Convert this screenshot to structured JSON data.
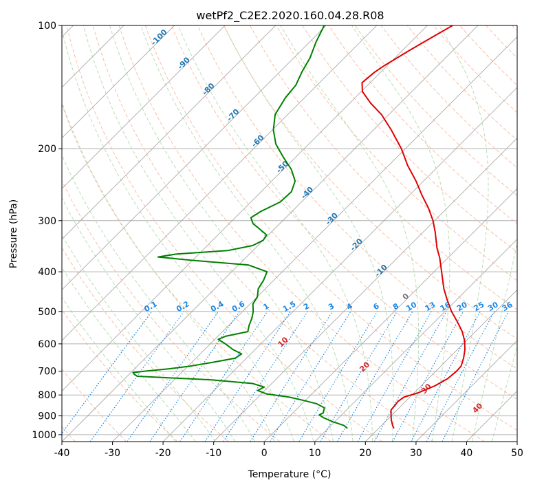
{
  "colors": {
    "temperature": "#e00000",
    "dewpoint": "#008000",
    "isotherm": "#9e9e9e",
    "dry_adiabat": "#f4a582",
    "moist_adiabat": "#a6d6a0",
    "mixing_ratio": "#1e88e5",
    "isotherm_label": "#1f77b4",
    "ma_label": "#d62728",
    "zero_label": "#777777"
  },
  "chart_data": {
    "type": "skew-t",
    "title": "wetPf2_C2E2.2020.160.04.28.R08",
    "xlabel": "Temperature (°C)",
    "ylabel": "Pressure (hPa)",
    "xlim": [
      -40,
      50
    ],
    "ylim": [
      1040,
      100
    ],
    "xticks": [
      -40,
      -30,
      -20,
      -10,
      0,
      10,
      20,
      30,
      40,
      50
    ],
    "yticks": [
      100,
      200,
      300,
      400,
      500,
      600,
      700,
      800,
      900,
      1000
    ],
    "mixing_ratio_labels": [
      "0.1",
      "0.2",
      "0.4",
      "0.6",
      "1",
      "1.5",
      "2",
      "3",
      "4",
      "6",
      "8",
      "10",
      "13",
      "16",
      "20",
      "25",
      "30",
      "36"
    ],
    "mixing_ratio_values": [
      0.1,
      0.2,
      0.4,
      0.6,
      1,
      1.5,
      2,
      3,
      4,
      6,
      8,
      10,
      13,
      16,
      20,
      25,
      30,
      36
    ],
    "isotherm_labels": [
      "-100",
      "-90",
      "-80",
      "-70",
      "-60",
      "-50",
      "-40",
      "-30",
      "-20",
      "-10",
      "0"
    ],
    "isotherm_label_values": [
      -100,
      -90,
      -80,
      -70,
      -60,
      -50,
      -40,
      -30,
      -20,
      -10,
      0
    ],
    "moist_adiabat_labels": [
      "10",
      "20",
      "30",
      "40"
    ],
    "moist_adiabat_label_values": [
      10,
      20,
      30,
      40
    ],
    "series": [
      {
        "name": "Temperature",
        "points": [
          [
            965,
            23.0
          ],
          [
            950,
            22.2
          ],
          [
            920,
            20.8
          ],
          [
            890,
            19.6
          ],
          [
            870,
            18.8
          ],
          [
            850,
            18.7
          ],
          [
            830,
            18.5
          ],
          [
            810,
            18.8
          ],
          [
            790,
            20.8
          ],
          [
            760,
            22.7
          ],
          [
            730,
            23.8
          ],
          [
            700,
            24.1
          ],
          [
            680,
            24.0
          ],
          [
            650,
            22.9
          ],
          [
            620,
            21.5
          ],
          [
            590,
            19.7
          ],
          [
            560,
            17.4
          ],
          [
            530,
            14.5
          ],
          [
            500,
            11.3
          ],
          [
            470,
            8.3
          ],
          [
            440,
            5.3
          ],
          [
            400,
            1.5
          ],
          [
            370,
            -1.6
          ],
          [
            350,
            -4.1
          ],
          [
            320,
            -7.6
          ],
          [
            300,
            -10.3
          ],
          [
            280,
            -13.6
          ],
          [
            260,
            -17.5
          ],
          [
            240,
            -21.5
          ],
          [
            220,
            -26.2
          ],
          [
            200,
            -30.8
          ],
          [
            180,
            -36.5
          ],
          [
            165,
            -41.5
          ],
          [
            155,
            -45.8
          ],
          [
            145,
            -49.8
          ],
          [
            138,
            -51.6
          ],
          [
            130,
            -51.2
          ],
          [
            125,
            -50.5
          ],
          [
            115,
            -48.6
          ],
          [
            105,
            -46.3
          ],
          [
            100,
            -45.0
          ]
        ]
      },
      {
        "name": "Dewpoint",
        "points": [
          [
            965,
            13.8
          ],
          [
            950,
            12.6
          ],
          [
            930,
            9.6
          ],
          [
            910,
            7.1
          ],
          [
            895,
            5.6
          ],
          [
            885,
            6.0
          ],
          [
            860,
            5.2
          ],
          [
            840,
            2.8
          ],
          [
            825,
            -0.3
          ],
          [
            810,
            -3.8
          ],
          [
            795,
            -9.0
          ],
          [
            780,
            -11.4
          ],
          [
            765,
            -10.8
          ],
          [
            750,
            -13.8
          ],
          [
            735,
            -22.6
          ],
          [
            720,
            -38.0
          ],
          [
            712,
            -39.0
          ],
          [
            705,
            -39.6
          ],
          [
            700,
            -37.7
          ],
          [
            690,
            -33.0
          ],
          [
            680,
            -29.5
          ],
          [
            665,
            -25.7
          ],
          [
            650,
            -22.2
          ],
          [
            635,
            -21.8
          ],
          [
            620,
            -24.3
          ],
          [
            600,
            -27.0
          ],
          [
            585,
            -29.3
          ],
          [
            575,
            -28.5
          ],
          [
            560,
            -25.0
          ],
          [
            540,
            -26.0
          ],
          [
            520,
            -26.8
          ],
          [
            500,
            -27.9
          ],
          [
            480,
            -29.4
          ],
          [
            460,
            -30.0
          ],
          [
            440,
            -31.4
          ],
          [
            420,
            -32.0
          ],
          [
            400,
            -33.0
          ],
          [
            385,
            -38.0
          ],
          [
            375,
            -50.0
          ],
          [
            368,
            -57.5
          ],
          [
            362,
            -54.5
          ],
          [
            355,
            -45.0
          ],
          [
            345,
            -41.0
          ],
          [
            335,
            -40.0
          ],
          [
            325,
            -40.4
          ],
          [
            315,
            -42.8
          ],
          [
            305,
            -45.3
          ],
          [
            295,
            -46.9
          ],
          [
            285,
            -46.2
          ],
          [
            270,
            -44.2
          ],
          [
            255,
            -44.0
          ],
          [
            240,
            -45.4
          ],
          [
            225,
            -48.4
          ],
          [
            210,
            -52.4
          ],
          [
            195,
            -56.5
          ],
          [
            180,
            -59.8
          ],
          [
            165,
            -62.5
          ],
          [
            150,
            -63.8
          ],
          [
            140,
            -64.2
          ],
          [
            130,
            -65.6
          ],
          [
            120,
            -66.8
          ],
          [
            110,
            -68.7
          ],
          [
            100,
            -70.4
          ]
        ]
      }
    ]
  }
}
